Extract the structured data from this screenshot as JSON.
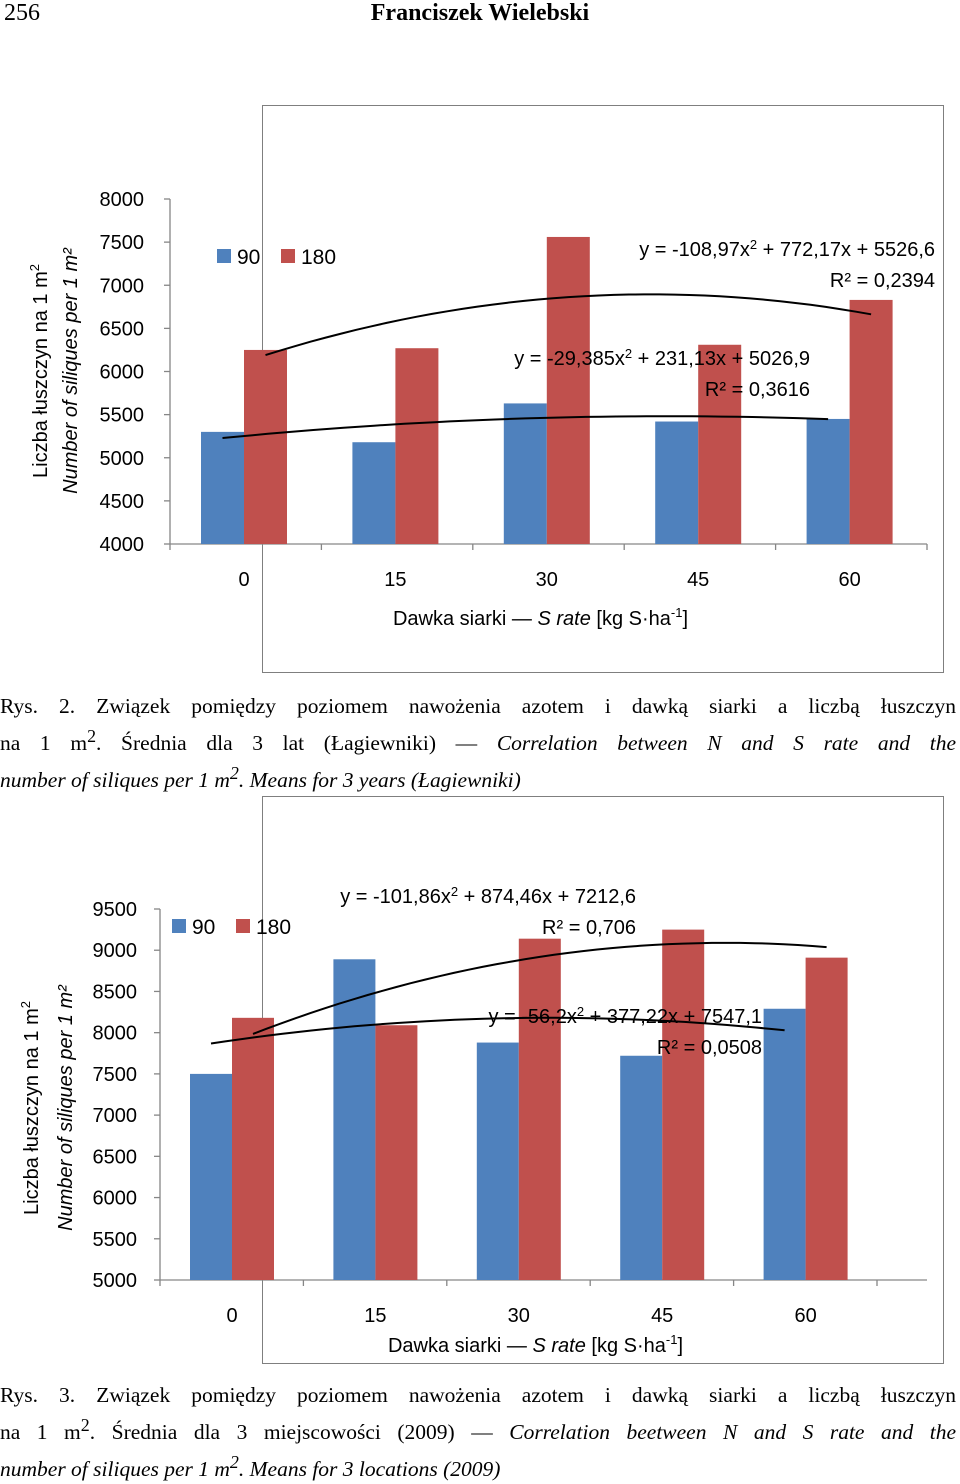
{
  "header": {
    "page_number": "256",
    "author": "Franciszek Wielebski"
  },
  "chart_data": [
    {
      "type": "bar",
      "categories": [
        "0",
        "15",
        "30",
        "45",
        "60"
      ],
      "series": [
        {
          "name": "90",
          "color": "#4f81bd",
          "values": [
            5300,
            5180,
            5630,
            5420,
            5450
          ]
        },
        {
          "name": "180",
          "color": "#c0504d",
          "values": [
            6250,
            6270,
            7560,
            6310,
            6830
          ]
        }
      ],
      "trendlines": [
        {
          "series": "180",
          "type": "poly2",
          "equation_pre": "y = -108,97x",
          "equation_post": " + 772,17x + 5526,6",
          "r2": "R² = 0,2394",
          "coef": [
            -108.97,
            772.17,
            5526.6
          ]
        },
        {
          "series": "90",
          "type": "poly2",
          "equation_pre": "y = -29,385x",
          "equation_post": " + 231,13x + 5026,9",
          "r2": "R² = 0,3616",
          "coef": [
            -29.385,
            231.13,
            5026.9
          ]
        }
      ],
      "ylabel_line1": "Liczba łuszczyn na 1 m",
      "ylabel_line2": "Number of siliques per 1 m²",
      "xlabel_pre": "Dawka siarki —",
      "xlabel_ital": "S rate",
      "xlabel_post": "[kg S·ha",
      "xlabel_sup": "-1",
      "xlabel_end": "]",
      "ylim": [
        4000,
        8000
      ],
      "yticks": [
        "4000",
        "4500",
        "5000",
        "5500",
        "6000",
        "6500",
        "7000",
        "7500",
        "8000"
      ],
      "legend_position": "top-left",
      "grid": false
    },
    {
      "type": "bar",
      "categories": [
        "0",
        "15",
        "30",
        "45",
        "60"
      ],
      "series": [
        {
          "name": "90",
          "color": "#4f81bd",
          "values": [
            7500,
            8890,
            7880,
            7720,
            8290
          ]
        },
        {
          "name": "180",
          "color": "#c0504d",
          "values": [
            8180,
            8090,
            9140,
            9250,
            8910
          ]
        }
      ],
      "trendlines": [
        {
          "series": "180",
          "type": "poly2",
          "equation_pre": "y = -101,86x",
          "equation_post": " + 874,46x + 7212,6",
          "r2": "R² = 0,706",
          "coef": [
            -101.86,
            874.46,
            7212.6
          ]
        },
        {
          "series": "90",
          "type": "poly2",
          "equation_pre": "y = -56,2x",
          "equation_post": " + 377,22x + 7547,1",
          "r2": "R² = 0,0508",
          "coef": [
            -56.2,
            377.22,
            7547.1
          ]
        }
      ],
      "ylabel_line1": "Liczba łuszczyn na 1 m",
      "ylabel_line2": "Number of siliques per 1 m²",
      "xlabel_pre": "Dawka siarki —",
      "xlabel_ital": "S rate",
      "xlabel_post": "[kg S·ha",
      "xlabel_sup": "-1",
      "xlabel_end": "]",
      "ylim": [
        5000,
        9500
      ],
      "yticks": [
        "5000",
        "5500",
        "6000",
        "6500",
        "7000",
        "7500",
        "8000",
        "8500",
        "9000",
        "9500"
      ],
      "legend_position": "top-left",
      "grid": false
    }
  ],
  "captions": [
    {
      "label": "Rys. 2.",
      "pl_a": "Związek pomiędzy poziomem nawożenia azotem i dawką siarki a liczbą łuszczyn",
      "pl_b": "na 1 m",
      "pl_c": ". Średnia dla 3 lat (Łagiewniki) —",
      "en_a": "Correlation between N and S rate and the",
      "en_b": "number of siliques per 1 m",
      "en_c": ". Means for 3 years (Łagiewniki)",
      "sup": "2"
    },
    {
      "label": "Rys. 3.",
      "pl_a": "Związek pomiędzy poziomem nawożenia azotem i dawką siarki a liczbą łuszczyn",
      "pl_b": "na 1 m",
      "pl_c": ". Średnia dla 3 miejscowości (2009) —",
      "en_a": "Correlation beetween N and S rate and the",
      "en_b": "number of siliques per 1 m",
      "en_c": ". Means for 3 locations (2009)",
      "sup": "2"
    }
  ]
}
